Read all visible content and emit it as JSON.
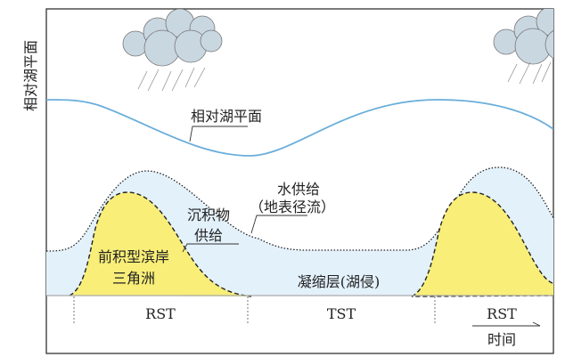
{
  "yaxis_label": "相对湖平面",
  "labels": {
    "lake_level": "相对湖平面",
    "water_supply_1": "水供给",
    "water_supply_2": "（地表径流）",
    "sediment_1": "沉积物",
    "sediment_2": "供给",
    "delta_1": "前积型滨岸",
    "delta_2": "三角洲",
    "condensed": "凝缩层(湖侵)"
  },
  "stages": [
    "RST",
    "TST",
    "RST"
  ],
  "time_label": "时间",
  "colors": {
    "lake": "#6aaedb",
    "water": "#e3f1fb",
    "sediment": "#f8ee78",
    "cloud": "#c9d7e1"
  }
}
